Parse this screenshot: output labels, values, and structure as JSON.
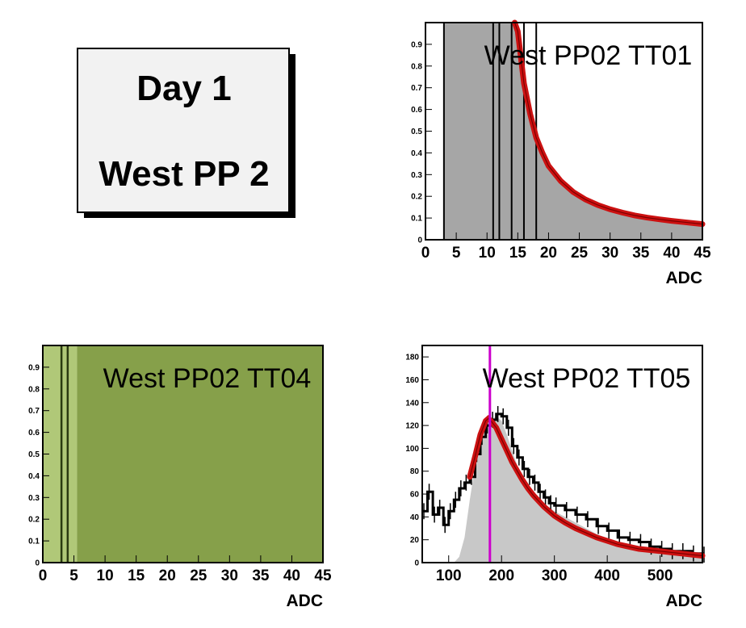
{
  "title_box": {
    "line1": "Day 1",
    "line2": "West PP 2"
  },
  "colors": {
    "hist_gray": "#a6a6a6",
    "hist_light_gray": "#c8c8c8",
    "fit_red": "#cc1111",
    "marker_magenta": "#cc00cc",
    "green_dark": "#86a04a",
    "green_light": "#b0c878",
    "box_fill": "#f2f2f2"
  },
  "chart_data": [
    {
      "id": "tt01",
      "type": "area",
      "title": "West PP02 TT01",
      "xlabel": "ADC",
      "ylabel": "",
      "xlim": [
        0,
        45
      ],
      "ylim": [
        0,
        1
      ],
      "xticks": [
        "0",
        "5",
        "10",
        "15",
        "20",
        "25",
        "30",
        "35",
        "40",
        "45"
      ],
      "yticks": [
        "0",
        "0.1",
        "0.2",
        "0.3",
        "0.4",
        "0.5",
        "0.6",
        "0.7",
        "0.8",
        "0.9"
      ],
      "grid": false,
      "series": [
        {
          "kind": "histogram",
          "x": [
            3,
            45
          ],
          "fill_to": "fit"
        },
        {
          "kind": "fit",
          "x": [
            14.5,
            15,
            16,
            17,
            18,
            19,
            20,
            22,
            24,
            26,
            28,
            30,
            32,
            34,
            36,
            38,
            40,
            42,
            45
          ],
          "y": [
            1.0,
            0.96,
            0.72,
            0.58,
            0.47,
            0.4,
            0.34,
            0.27,
            0.22,
            0.185,
            0.16,
            0.14,
            0.125,
            0.112,
            0.102,
            0.094,
            0.087,
            0.081,
            0.072
          ]
        }
      ],
      "vlines": [
        3,
        11,
        12,
        14,
        16,
        18
      ]
    },
    {
      "id": "tt04",
      "type": "area",
      "title": "West PP02 TT04",
      "xlabel": "ADC",
      "ylabel": "",
      "xlim": [
        0,
        45
      ],
      "ylim": [
        0,
        1
      ],
      "xticks": [
        "0",
        "5",
        "10",
        "15",
        "20",
        "25",
        "30",
        "35",
        "40",
        "45"
      ],
      "yticks": [
        "0",
        "0.1",
        "0.2",
        "0.3",
        "0.4",
        "0.5",
        "0.6",
        "0.7",
        "0.8",
        "0.9"
      ],
      "grid": false,
      "bands": [
        {
          "x": [
            0,
            5.5
          ],
          "fill": "light"
        },
        {
          "x": [
            5.5,
            45
          ],
          "fill": "dark"
        }
      ],
      "vlines": [
        3,
        4
      ]
    },
    {
      "id": "tt05",
      "type": "line",
      "title": "West PP02 TT05",
      "xlabel": "ADC",
      "ylabel": "",
      "xlim": [
        50,
        580
      ],
      "ylim": [
        0,
        190
      ],
      "xticks": [
        "100",
        "200",
        "300",
        "400",
        "500"
      ],
      "yticks": [
        "0",
        "20",
        "40",
        "60",
        "80",
        "100",
        "120",
        "140",
        "160",
        "180"
      ],
      "grid": false,
      "series": [
        {
          "kind": "data",
          "x": [
            50,
            60,
            70,
            80,
            90,
            100,
            110,
            120,
            130,
            140,
            150,
            160,
            170,
            180,
            190,
            200,
            210,
            220,
            230,
            240,
            250,
            260,
            270,
            280,
            290,
            300,
            320,
            340,
            360,
            380,
            400,
            420,
            440,
            460,
            480,
            500,
            520,
            540,
            560,
            580
          ],
          "y": [
            45,
            62,
            42,
            48,
            33,
            45,
            55,
            65,
            70,
            75,
            95,
            110,
            120,
            125,
            130,
            128,
            118,
            102,
            92,
            82,
            75,
            70,
            62,
            57,
            52,
            50,
            46,
            42,
            38,
            32,
            28,
            22,
            20,
            18,
            14,
            12,
            10,
            10,
            8,
            7
          ]
        },
        {
          "kind": "shaded",
          "x": [
            110,
            120,
            130,
            140,
            150,
            160,
            170,
            180,
            190,
            200,
            210,
            220,
            230,
            240,
            260,
            280,
            300,
            340,
            380,
            420,
            460,
            500,
            540,
            580
          ],
          "y": [
            0,
            5,
            22,
            55,
            85,
            110,
            120,
            125,
            128,
            124,
            112,
            98,
            85,
            74,
            62,
            52,
            45,
            35,
            25,
            18,
            13,
            10,
            7,
            5
          ]
        },
        {
          "kind": "fit",
          "x": [
            140,
            150,
            160,
            170,
            175,
            180,
            190,
            200,
            210,
            220,
            230,
            240,
            250,
            260,
            280,
            300,
            320,
            340,
            360,
            380,
            400,
            420,
            440,
            460,
            480,
            500,
            520,
            540,
            560,
            580
          ],
          "y": [
            75,
            93,
            112,
            124,
            126,
            124,
            118,
            108,
            98,
            88,
            80,
            72,
            65,
            59,
            49,
            41,
            35,
            30,
            26,
            22,
            19,
            16,
            14,
            12,
            11,
            10,
            9,
            8,
            7,
            6
          ]
        }
      ],
      "marker_x": 178
    }
  ]
}
